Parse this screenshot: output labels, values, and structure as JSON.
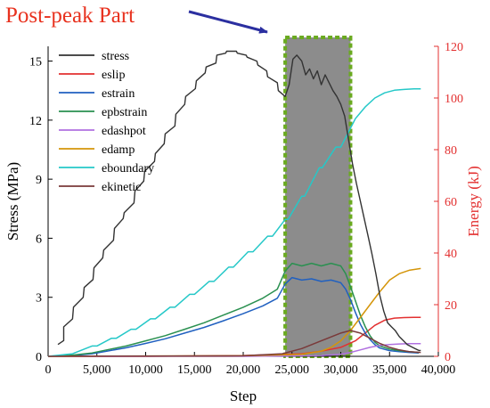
{
  "chart_data": {
    "type": "line",
    "title": "",
    "xlabel": "Step",
    "ylabel_left": "Stress (MPa)",
    "ylabel_right": "Energy (kJ)",
    "xlim": [
      0,
      40000
    ],
    "ylim_left": [
      0,
      15.75
    ],
    "ylim_right": [
      0,
      120
    ],
    "x_ticks": [
      0,
      5000,
      10000,
      15000,
      20000,
      25000,
      30000,
      35000,
      40000
    ],
    "x_tick_labels": [
      "0",
      "5,000",
      "10,000",
      "15,000",
      "20,000",
      "25,000",
      "30,000",
      "35,000",
      "40,000"
    ],
    "y_left_ticks": [
      0,
      3,
      6,
      9,
      12,
      15
    ],
    "y_right_ticks": [
      0,
      20,
      40,
      60,
      80,
      100,
      120
    ],
    "grid": false,
    "legend_position": "top-left",
    "annotation": {
      "text": "Post-peak Part",
      "color": "#e8321f",
      "arrow_color": "#2b2fa0",
      "region_x": [
        24300,
        31000
      ],
      "region_fill": "#8c8c8c",
      "region_border": "#6aaa20"
    },
    "series": [
      {
        "name": "stress",
        "axis": "left",
        "color": "#333333",
        "x": [
          1000,
          1600,
          1600,
          2500,
          2600,
          3600,
          3700,
          4600,
          4700,
          5600,
          5700,
          6700,
          6800,
          7700,
          7800,
          8800,
          8900,
          9800,
          9900,
          10900,
          11000,
          11900,
          12000,
          13000,
          13100,
          14000,
          14100,
          15100,
          15200,
          16100,
          16200,
          17200,
          17300,
          18200,
          18300,
          19300,
          19400,
          20300,
          20400,
          21400,
          21500,
          22400,
          22500,
          23500,
          23600,
          24300,
          24700,
          25100,
          25500,
          26000,
          26400,
          26800,
          27200,
          27600,
          28000,
          28400,
          28800,
          29200,
          29600,
          30000,
          30400,
          30800,
          31200,
          31600,
          32000,
          32400,
          32800,
          33200,
          33600,
          34000,
          34400,
          34800,
          35200,
          35600,
          36000,
          36400,
          36800,
          37200,
          37600,
          38000,
          38200
        ],
        "y": [
          0.6,
          0.8,
          1.5,
          1.9,
          2.5,
          3.0,
          3.5,
          3.9,
          4.5,
          5.0,
          5.4,
          5.9,
          6.5,
          7.0,
          7.3,
          7.8,
          8.4,
          8.9,
          9.4,
          9.9,
          10.3,
          10.8,
          11.3,
          11.7,
          12.3,
          12.8,
          13.2,
          13.6,
          14.0,
          14.4,
          14.7,
          14.9,
          15.3,
          15.4,
          15.5,
          15.5,
          15.4,
          15.3,
          15.2,
          15.0,
          14.8,
          14.5,
          14.2,
          13.9,
          13.5,
          13.2,
          13.8,
          15.1,
          15.3,
          15.0,
          14.3,
          14.6,
          14.1,
          14.5,
          13.8,
          14.3,
          13.9,
          13.5,
          13.2,
          12.8,
          12.2,
          11.0,
          9.8,
          8.8,
          7.9,
          7.0,
          6.1,
          5.2,
          4.2,
          3.1,
          2.3,
          1.7,
          1.5,
          1.3,
          1.0,
          0.8,
          0.6,
          0.5,
          0.4,
          0.3,
          0.3
        ]
      },
      {
        "name": "eslip",
        "axis": "right",
        "color": "#e33030",
        "x": [
          0,
          10000,
          20000,
          26000,
          28000,
          30000,
          31500,
          32500,
          33500,
          34500,
          35500,
          36500,
          37500,
          38200
        ],
        "y": [
          0,
          0,
          0.3,
          1.0,
          2.0,
          3.5,
          6.0,
          9.0,
          12.0,
          14.0,
          14.8,
          15.0,
          15.1,
          15.1
        ]
      },
      {
        "name": "estrain",
        "axis": "right",
        "color": "#2060c0",
        "x": [
          0,
          2500,
          4500,
          6000,
          8000,
          10000,
          12000,
          14000,
          16000,
          18000,
          20000,
          22000,
          23500,
          24300,
          25000,
          26000,
          27000,
          28000,
          29000,
          30000,
          30500,
          31000,
          31500,
          32000,
          32500,
          33000,
          33500,
          34000,
          35000,
          36000,
          37000,
          38000
        ],
        "y": [
          0,
          0.3,
          1.0,
          2.0,
          3.3,
          5.0,
          6.8,
          9.0,
          11.2,
          13.8,
          16.5,
          19.5,
          22.5,
          28.0,
          30.5,
          29.5,
          30.0,
          29.0,
          29.5,
          28.5,
          26.0,
          22.0,
          17.0,
          12.5,
          9.0,
          6.5,
          4.5,
          3.2,
          2.2,
          1.8,
          1.5,
          1.3
        ]
      },
      {
        "name": "epbstrain",
        "axis": "right",
        "color": "#2a9050",
        "x": [
          0,
          2500,
          4500,
          6000,
          8000,
          10000,
          12000,
          14000,
          16000,
          18000,
          20000,
          22000,
          23500,
          24300,
          25000,
          26000,
          27000,
          28000,
          29000,
          30000,
          30500,
          31000,
          31500,
          32000,
          32500,
          33000,
          33500,
          34000,
          35000,
          36000,
          37000,
          38000
        ],
        "y": [
          0,
          0.5,
          1.3,
          2.5,
          4.0,
          6.0,
          8.0,
          10.5,
          13.0,
          16.0,
          19.0,
          22.5,
          26.0,
          33.0,
          36.0,
          35.0,
          36.0,
          35.0,
          36.0,
          35.0,
          32.0,
          27.0,
          21.5,
          16.0,
          11.5,
          8.0,
          5.5,
          4.0,
          2.8,
          2.2,
          1.8,
          1.5
        ]
      },
      {
        "name": "edashpot",
        "axis": "right",
        "color": "#b070e0",
        "x": [
          0,
          20000,
          28000,
          30000,
          31000,
          32000,
          33000,
          34000,
          35000,
          36000,
          37000,
          38200
        ],
        "y": [
          0,
          0,
          0.3,
          0.8,
          1.5,
          2.5,
          3.5,
          4.2,
          4.6,
          4.8,
          4.9,
          4.9
        ]
      },
      {
        "name": "edamp",
        "axis": "right",
        "color": "#d4950a",
        "x": [
          0,
          20000,
          26000,
          28000,
          29000,
          30000,
          31000,
          32000,
          33000,
          34000,
          35000,
          36000,
          37000,
          38200
        ],
        "y": [
          0,
          0.2,
          0.8,
          2.0,
          3.5,
          6.0,
          10.0,
          15.0,
          20.0,
          25.0,
          29.5,
          32.0,
          33.3,
          34.0
        ]
      },
      {
        "name": "eboundary",
        "axis": "right",
        "color": "#25c8c8",
        "x": [
          0,
          2500,
          4500,
          5000,
          6500,
          7000,
          8500,
          9000,
          10500,
          11000,
          12500,
          13000,
          14500,
          15000,
          16500,
          17000,
          18500,
          19000,
          20500,
          21000,
          22500,
          23000,
          24300,
          24600,
          26000,
          26300,
          27800,
          28100,
          29500,
          30000,
          31500,
          32500,
          33500,
          34500,
          35500,
          36500,
          37500,
          38200
        ],
        "y": [
          0,
          1.0,
          4.0,
          4.0,
          7.0,
          7.0,
          10.5,
          10.5,
          14.5,
          14.5,
          19.0,
          19.0,
          24.0,
          24.0,
          29.0,
          29.0,
          34.5,
          34.5,
          40.5,
          40.5,
          46.5,
          46.5,
          53.0,
          53.0,
          62.0,
          62.0,
          73.0,
          73.0,
          81.0,
          81.0,
          92.0,
          96.5,
          100.0,
          102.0,
          103.0,
          103.3,
          103.5,
          103.5
        ]
      },
      {
        "name": "ekinetic",
        "axis": "right",
        "color": "#7a3a3a",
        "x": [
          0,
          20000,
          24000,
          26000,
          28000,
          30000,
          31000,
          32000,
          33000,
          34000,
          35000,
          36000,
          37000,
          38200
        ],
        "y": [
          0,
          0.2,
          1.0,
          3.0,
          6.0,
          9.0,
          10.0,
          9.0,
          7.0,
          5.0,
          3.5,
          2.5,
          1.8,
          1.5
        ]
      }
    ]
  }
}
